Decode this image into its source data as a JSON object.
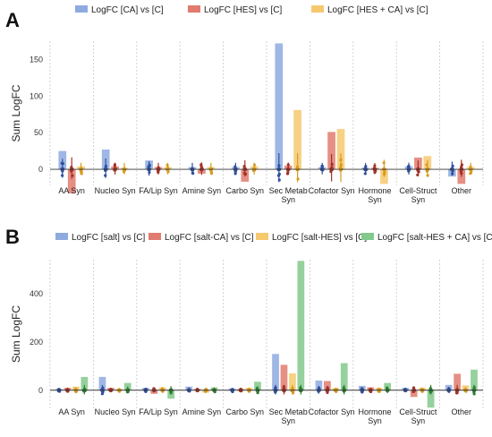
{
  "colors": {
    "blue": "#8eaadf",
    "red": "#e07b70",
    "yellow": "#f6c96e",
    "green": "#82c98b",
    "blue_dot": "#2f4f9e",
    "red_dot": "#a33227",
    "yellow_dot": "#d79b1e",
    "green_dot": "#2e7d32",
    "grid": "#c8c8c8",
    "zero": "#333333"
  },
  "chart_data": [
    {
      "panel": "A",
      "type": "bar",
      "ylabel": "Sum LogFC",
      "ylim": [
        -22,
        175
      ],
      "yticks": [
        0,
        50,
        100,
        150
      ],
      "grid": "vertical dashed",
      "legend_position": "top",
      "categories": [
        "AA Syn",
        "Nucleo Syn",
        "FA/Lip Syn",
        "Amine Syn",
        "Carbo Syn",
        "Sec Metab Syn",
        "Cofactor Syn",
        "Hormone Syn",
        "Cell-Struct Syn",
        "Other"
      ],
      "category_labels": [
        [
          "AA Syn"
        ],
        [
          "Nucleo Syn"
        ],
        [
          "FA/Lip Syn"
        ],
        [
          "Amine Syn"
        ],
        [
          "Carbo Syn"
        ],
        [
          "Sec Metab",
          "Syn"
        ],
        [
          "Cofactor Syn"
        ],
        [
          "Hormone",
          "Syn"
        ],
        [
          "Cell-Struct",
          "Syn"
        ],
        [
          "Other"
        ]
      ],
      "series": [
        {
          "name": "LogFC [CA] vs [C]",
          "color": "blue",
          "values": [
            25,
            27,
            12,
            3,
            3,
            172,
            3,
            2,
            4,
            -10
          ]
        },
        {
          "name": "LogFC [HES] vs [C]",
          "color": "red",
          "values": [
            -33,
            4,
            3,
            -6,
            -17,
            5,
            51,
            2,
            16,
            -20
          ]
        },
        {
          "name": "LogFC [HES + CA] vs [C]",
          "color": "yellow",
          "values": [
            4,
            2,
            3,
            3,
            4,
            81,
            55,
            -20,
            18,
            3
          ]
        }
      ]
    },
    {
      "panel": "B",
      "type": "bar",
      "ylabel": "Sum LogFC",
      "ylim": [
        -75,
        540
      ],
      "yticks": [
        0,
        200,
        400
      ],
      "grid": "vertical dashed",
      "legend_position": "top",
      "categories": [
        "AA Syn",
        "Nucleo Syn",
        "FA/Lip Syn",
        "Amine Syn",
        "Carbo Syn",
        "Sec Metab Syn",
        "Cofactor Syn",
        "Hormone Syn",
        "Cell-Struct Syn",
        "Other"
      ],
      "category_labels": [
        [
          "AA Syn"
        ],
        [
          "Nucleo Syn"
        ],
        [
          "FA/Lip Syn"
        ],
        [
          "Amine Syn"
        ],
        [
          "Carbo Syn"
        ],
        [
          "Sec Metab",
          "Syn"
        ],
        [
          "Cofactor Syn"
        ],
        [
          "Hormone",
          "Syn"
        ],
        [
          "Cell-Struct",
          "Syn"
        ],
        [
          "Other"
        ]
      ],
      "series": [
        {
          "name": "LogFC [salt] vs [C]",
          "color": "blue",
          "values": [
            5,
            55,
            10,
            15,
            8,
            150,
            40,
            18,
            10,
            22
          ]
        },
        {
          "name": "LogFC [salt-CA] vs [C]",
          "color": "red",
          "values": [
            10,
            10,
            -15,
            5,
            5,
            105,
            38,
            12,
            -28,
            68
          ]
        },
        {
          "name": "LogFC [salt-HES] vs [C]",
          "color": "yellow",
          "values": [
            15,
            5,
            12,
            -10,
            10,
            70,
            10,
            10,
            10,
            20
          ]
        },
        {
          "name": "LogFC [salt-HES + CA] vs [C]",
          "color": "green",
          "values": [
            55,
            30,
            -35,
            12,
            35,
            535,
            112,
            30,
            -72,
            85
          ]
        }
      ]
    }
  ]
}
